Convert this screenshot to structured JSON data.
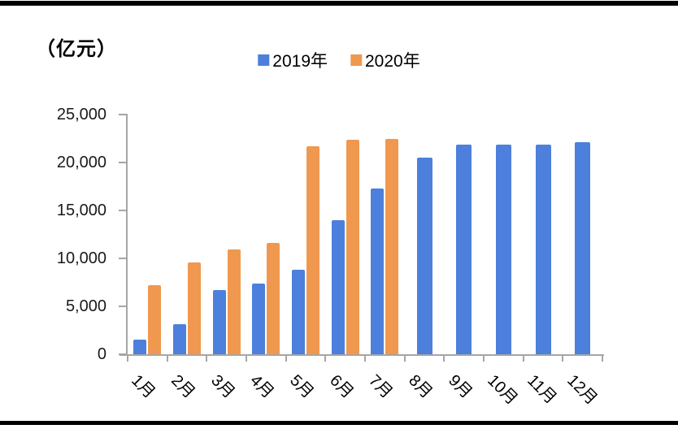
{
  "figure": {
    "unit_label": "（亿元）"
  },
  "chart_data": {
    "type": "bar",
    "title": "",
    "xlabel": "",
    "ylabel": "",
    "unit_label": "（亿元）",
    "categories": [
      "1月",
      "2月",
      "3月",
      "4月",
      "5月",
      "6月",
      "7月",
      "8月",
      "9月",
      "10月",
      "11月",
      "12月"
    ],
    "series": [
      {
        "name": "2019年",
        "color": "#4d7fdc",
        "values": [
          1500,
          3100,
          6700,
          7400,
          8800,
          14000,
          17300,
          20500,
          21900,
          21900,
          21900,
          22100
        ]
      },
      {
        "name": "2020年",
        "color": "#f0984f",
        "values": [
          7200,
          9600,
          10900,
          11600,
          21700,
          22400,
          22500,
          null,
          null,
          null,
          null,
          null
        ]
      }
    ],
    "ylim": [
      0,
      25000
    ],
    "ytick_interval": 5000,
    "ytick_labels": [
      "0",
      "5,000",
      "10,000",
      "15,000",
      "20,000",
      "25,000"
    ],
    "legend_position": "top-center",
    "grid": false,
    "x_label_rotation_deg": 45,
    "axis_color": "#a6a6a6",
    "text_color": "#1a1a1a",
    "border_color": "#000000"
  }
}
